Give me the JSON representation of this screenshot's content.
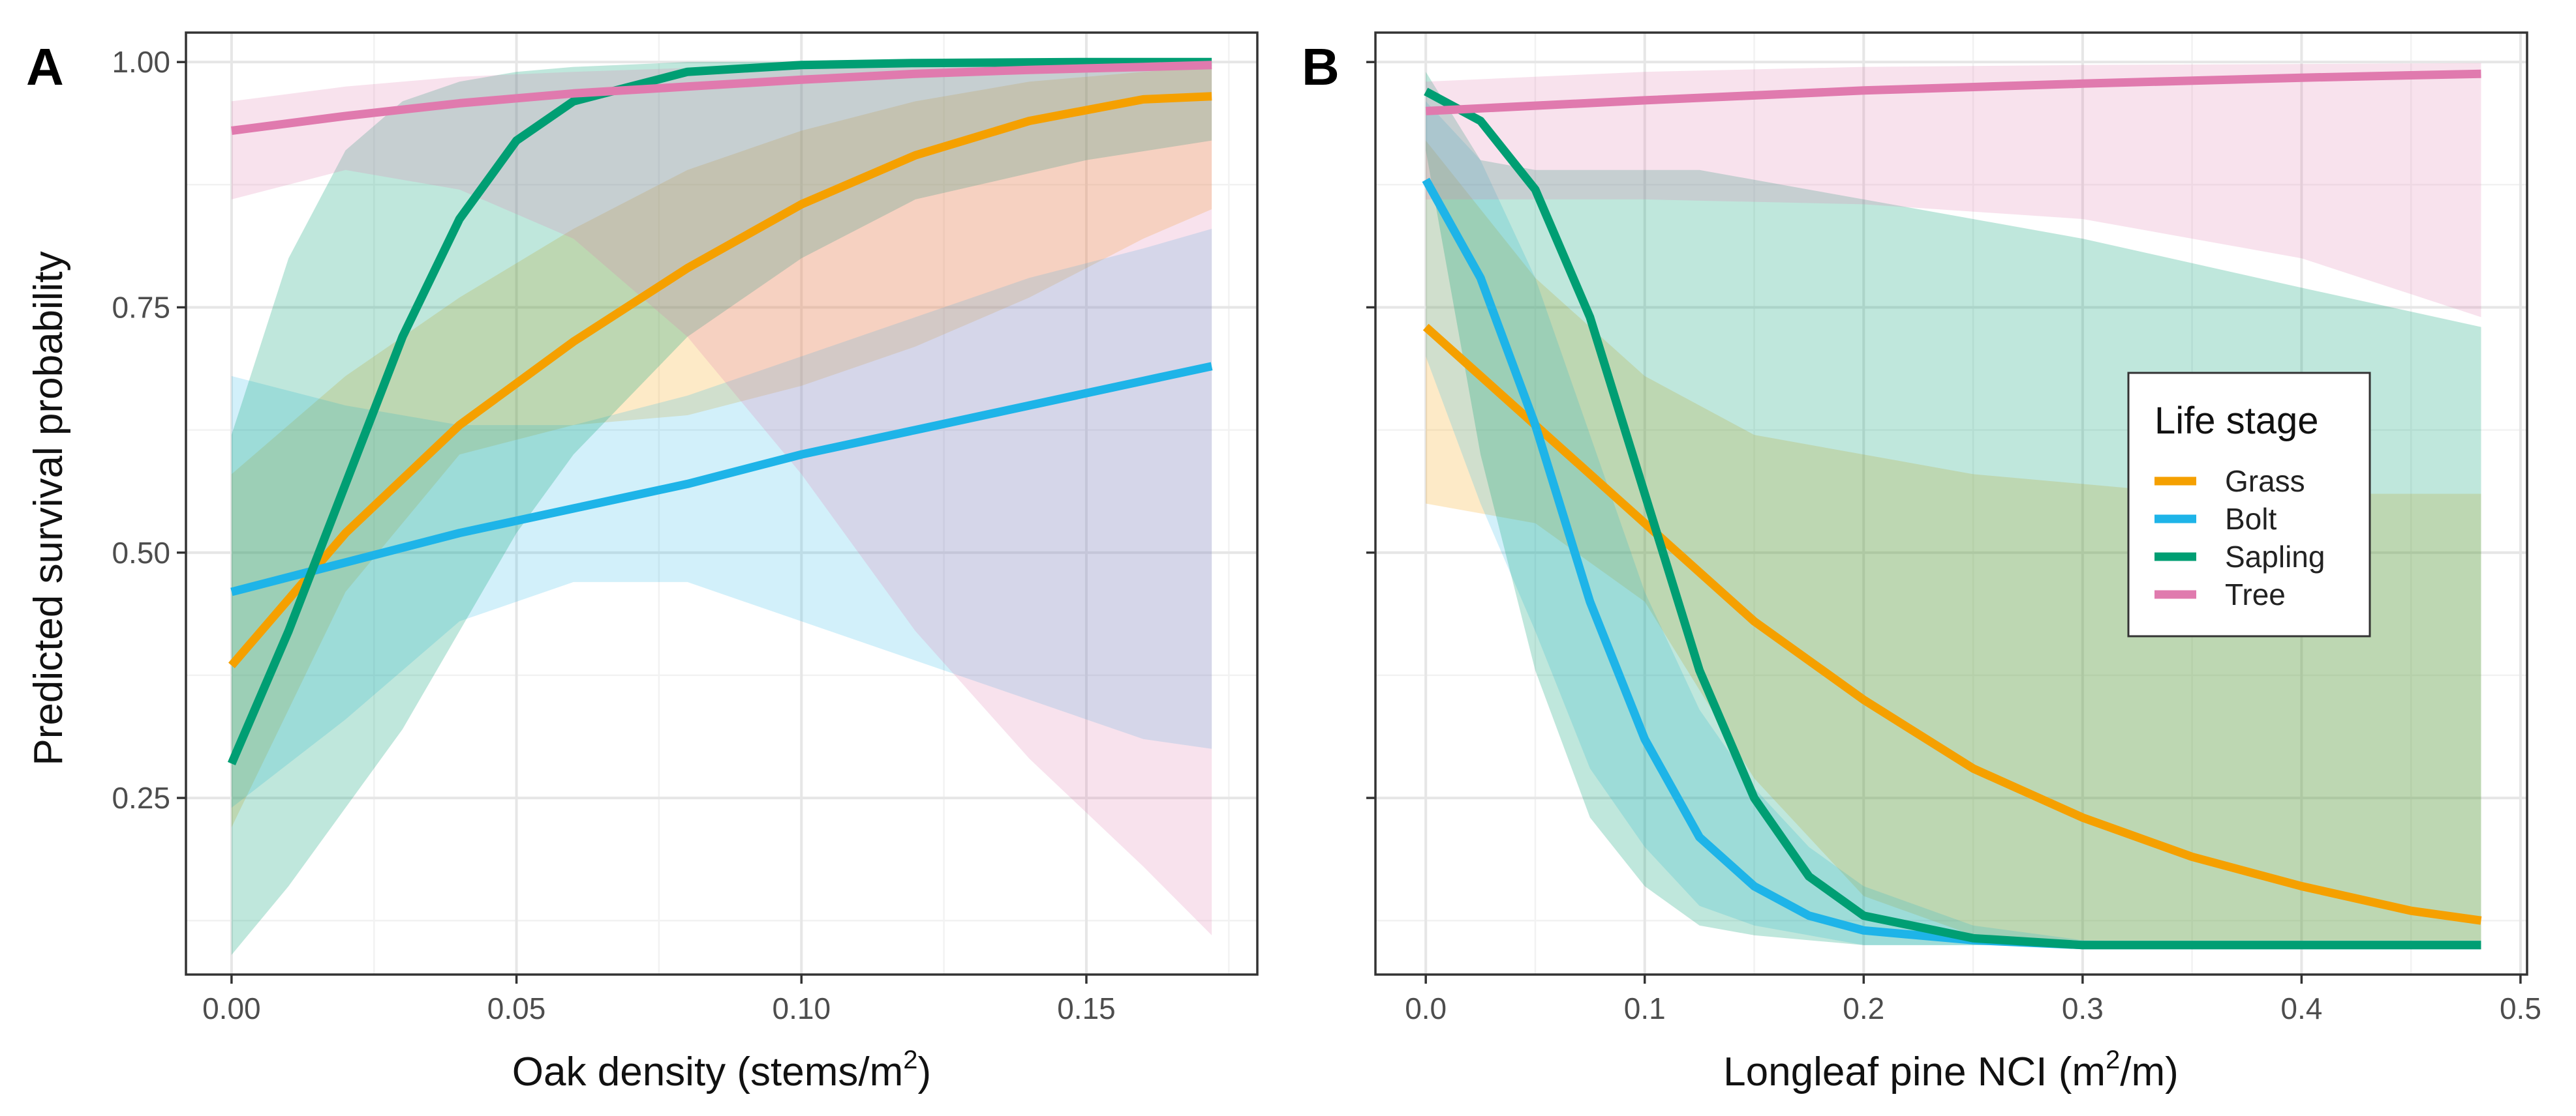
{
  "colors": {
    "Grass": "#F5A000",
    "Bolt": "#1EB4E8",
    "Sapling": "#009E73",
    "Tree": "#E07AAE"
  },
  "chart_data": [
    {
      "type": "line",
      "panel_label": "A",
      "title": "",
      "xlabel": "Oak density (stems/m",
      "xlabel_sup": "2",
      "xlabel_end": ")",
      "ylabel": "Predicted survival probability",
      "xlim": [
        -0.008,
        0.18
      ],
      "ylim": [
        0.07,
        1.03
      ],
      "x_ticks": [
        0.0,
        0.05,
        0.1,
        0.15
      ],
      "x_tick_labels": [
        "0.00",
        "0.05",
        "0.10",
        "0.15"
      ],
      "y_ticks": [
        0.25,
        0.5,
        0.75,
        1.0
      ],
      "y_tick_labels": [
        "0.25",
        "0.50",
        "0.75",
        "1.00"
      ],
      "grid": true,
      "series": [
        {
          "name": "Grass",
          "x": [
            0.0,
            0.02,
            0.04,
            0.06,
            0.08,
            0.1,
            0.12,
            0.14,
            0.16,
            0.172
          ],
          "y": [
            0.385,
            0.52,
            0.63,
            0.715,
            0.79,
            0.855,
            0.905,
            0.94,
            0.962,
            0.965
          ],
          "upper": [
            0.58,
            0.68,
            0.76,
            0.83,
            0.89,
            0.93,
            0.96,
            0.98,
            0.99,
            0.995
          ],
          "lower": [
            0.22,
            0.46,
            0.6,
            0.63,
            0.64,
            0.67,
            0.71,
            0.76,
            0.82,
            0.85
          ]
        },
        {
          "name": "Bolt",
          "x": [
            0.0,
            0.02,
            0.04,
            0.06,
            0.08,
            0.1,
            0.12,
            0.14,
            0.16,
            0.172
          ],
          "y": [
            0.46,
            0.49,
            0.52,
            0.545,
            0.57,
            0.6,
            0.625,
            0.65,
            0.675,
            0.69
          ],
          "upper": [
            0.68,
            0.65,
            0.63,
            0.63,
            0.66,
            0.7,
            0.74,
            0.78,
            0.81,
            0.83
          ],
          "lower": [
            0.24,
            0.33,
            0.43,
            0.47,
            0.47,
            0.43,
            0.39,
            0.35,
            0.31,
            0.3
          ]
        },
        {
          "name": "Sapling",
          "x": [
            0.0,
            0.01,
            0.02,
            0.03,
            0.04,
            0.05,
            0.06,
            0.08,
            0.1,
            0.12,
            0.15,
            0.172
          ],
          "y": [
            0.285,
            0.42,
            0.57,
            0.72,
            0.84,
            0.92,
            0.96,
            0.99,
            0.997,
            0.999,
            1.0,
            1.0
          ],
          "upper": [
            0.62,
            0.8,
            0.91,
            0.96,
            0.98,
            0.99,
            0.995,
            1.0,
            1.0,
            1.0,
            1.0,
            1.0
          ],
          "lower": [
            0.09,
            0.16,
            0.24,
            0.32,
            0.42,
            0.52,
            0.6,
            0.72,
            0.8,
            0.86,
            0.9,
            0.92
          ]
        },
        {
          "name": "Tree",
          "x": [
            0.0,
            0.02,
            0.04,
            0.06,
            0.08,
            0.1,
            0.12,
            0.14,
            0.16,
            0.172
          ],
          "y": [
            0.93,
            0.945,
            0.958,
            0.968,
            0.975,
            0.982,
            0.988,
            0.992,
            0.995,
            0.997
          ],
          "upper": [
            0.96,
            0.975,
            0.985,
            0.99,
            0.994,
            0.996,
            0.998,
            0.999,
            1.0,
            1.0
          ],
          "lower": [
            0.86,
            0.89,
            0.87,
            0.82,
            0.72,
            0.58,
            0.42,
            0.29,
            0.18,
            0.11
          ]
        }
      ]
    },
    {
      "type": "line",
      "panel_label": "B",
      "title": "",
      "xlabel": "Longleaf pine NCI (m",
      "xlabel_sup": "2",
      "xlabel_end": "/m)",
      "ylabel": "",
      "xlim": [
        -0.023,
        0.503
      ],
      "ylim": [
        0.07,
        1.03
      ],
      "x_ticks": [
        0.0,
        0.1,
        0.2,
        0.3,
        0.4,
        0.5
      ],
      "x_tick_labels": [
        "0.0",
        "0.1",
        "0.2",
        "0.3",
        "0.4",
        "0.5"
      ],
      "y_ticks": [
        0.25,
        0.5,
        0.75,
        1.0
      ],
      "y_tick_labels": [],
      "grid": true,
      "series": [
        {
          "name": "Grass",
          "x": [
            0.0,
            0.05,
            0.1,
            0.15,
            0.2,
            0.25,
            0.3,
            0.35,
            0.4,
            0.45,
            0.482
          ],
          "y": [
            0.73,
            0.63,
            0.53,
            0.43,
            0.35,
            0.28,
            0.23,
            0.19,
            0.16,
            0.135,
            0.125
          ],
          "upper": [
            0.92,
            0.78,
            0.68,
            0.62,
            0.6,
            0.58,
            0.57,
            0.56,
            0.56,
            0.56,
            0.56
          ],
          "lower": [
            0.55,
            0.53,
            0.45,
            0.27,
            0.15,
            0.11,
            0.1,
            0.1,
            0.1,
            0.1,
            0.1
          ]
        },
        {
          "name": "Bolt",
          "x": [
            0.0,
            0.025,
            0.05,
            0.075,
            0.1,
            0.125,
            0.15,
            0.175,
            0.2,
            0.25,
            0.3,
            0.4,
            0.482
          ],
          "y": [
            0.88,
            0.78,
            0.63,
            0.45,
            0.31,
            0.21,
            0.16,
            0.13,
            0.115,
            0.105,
            0.1,
            0.1,
            0.1
          ],
          "upper": [
            0.96,
            0.9,
            0.78,
            0.62,
            0.46,
            0.34,
            0.26,
            0.2,
            0.16,
            0.12,
            0.105,
            0.1,
            0.1
          ],
          "lower": [
            0.7,
            0.55,
            0.42,
            0.28,
            0.2,
            0.14,
            0.12,
            0.11,
            0.1,
            0.1,
            0.1,
            0.1,
            0.1
          ]
        },
        {
          "name": "Sapling",
          "x": [
            0.0,
            0.025,
            0.05,
            0.075,
            0.1,
            0.125,
            0.15,
            0.175,
            0.2,
            0.25,
            0.3,
            0.4,
            0.482
          ],
          "y": [
            0.97,
            0.94,
            0.87,
            0.74,
            0.56,
            0.38,
            0.25,
            0.17,
            0.13,
            0.107,
            0.1,
            0.1,
            0.1
          ],
          "upper": [
            0.99,
            0.9,
            0.89,
            0.89,
            0.89,
            0.89,
            0.88,
            0.87,
            0.86,
            0.84,
            0.82,
            0.77,
            0.73
          ],
          "lower": [
            0.91,
            0.6,
            0.38,
            0.23,
            0.16,
            0.12,
            0.11,
            0.105,
            0.1,
            0.1,
            0.1,
            0.1,
            0.1
          ]
        },
        {
          "name": "Tree",
          "x": [
            0.0,
            0.1,
            0.2,
            0.3,
            0.4,
            0.482
          ],
          "y": [
            0.95,
            0.961,
            0.971,
            0.978,
            0.984,
            0.988
          ],
          "upper": [
            0.98,
            0.99,
            0.995,
            0.997,
            0.998,
            0.999
          ],
          "lower": [
            0.86,
            0.86,
            0.855,
            0.84,
            0.8,
            0.74
          ]
        }
      ],
      "legend": {
        "title": "Life stage",
        "position": "right-center",
        "entries": [
          "Grass",
          "Bolt",
          "Sapling",
          "Tree"
        ]
      }
    }
  ]
}
